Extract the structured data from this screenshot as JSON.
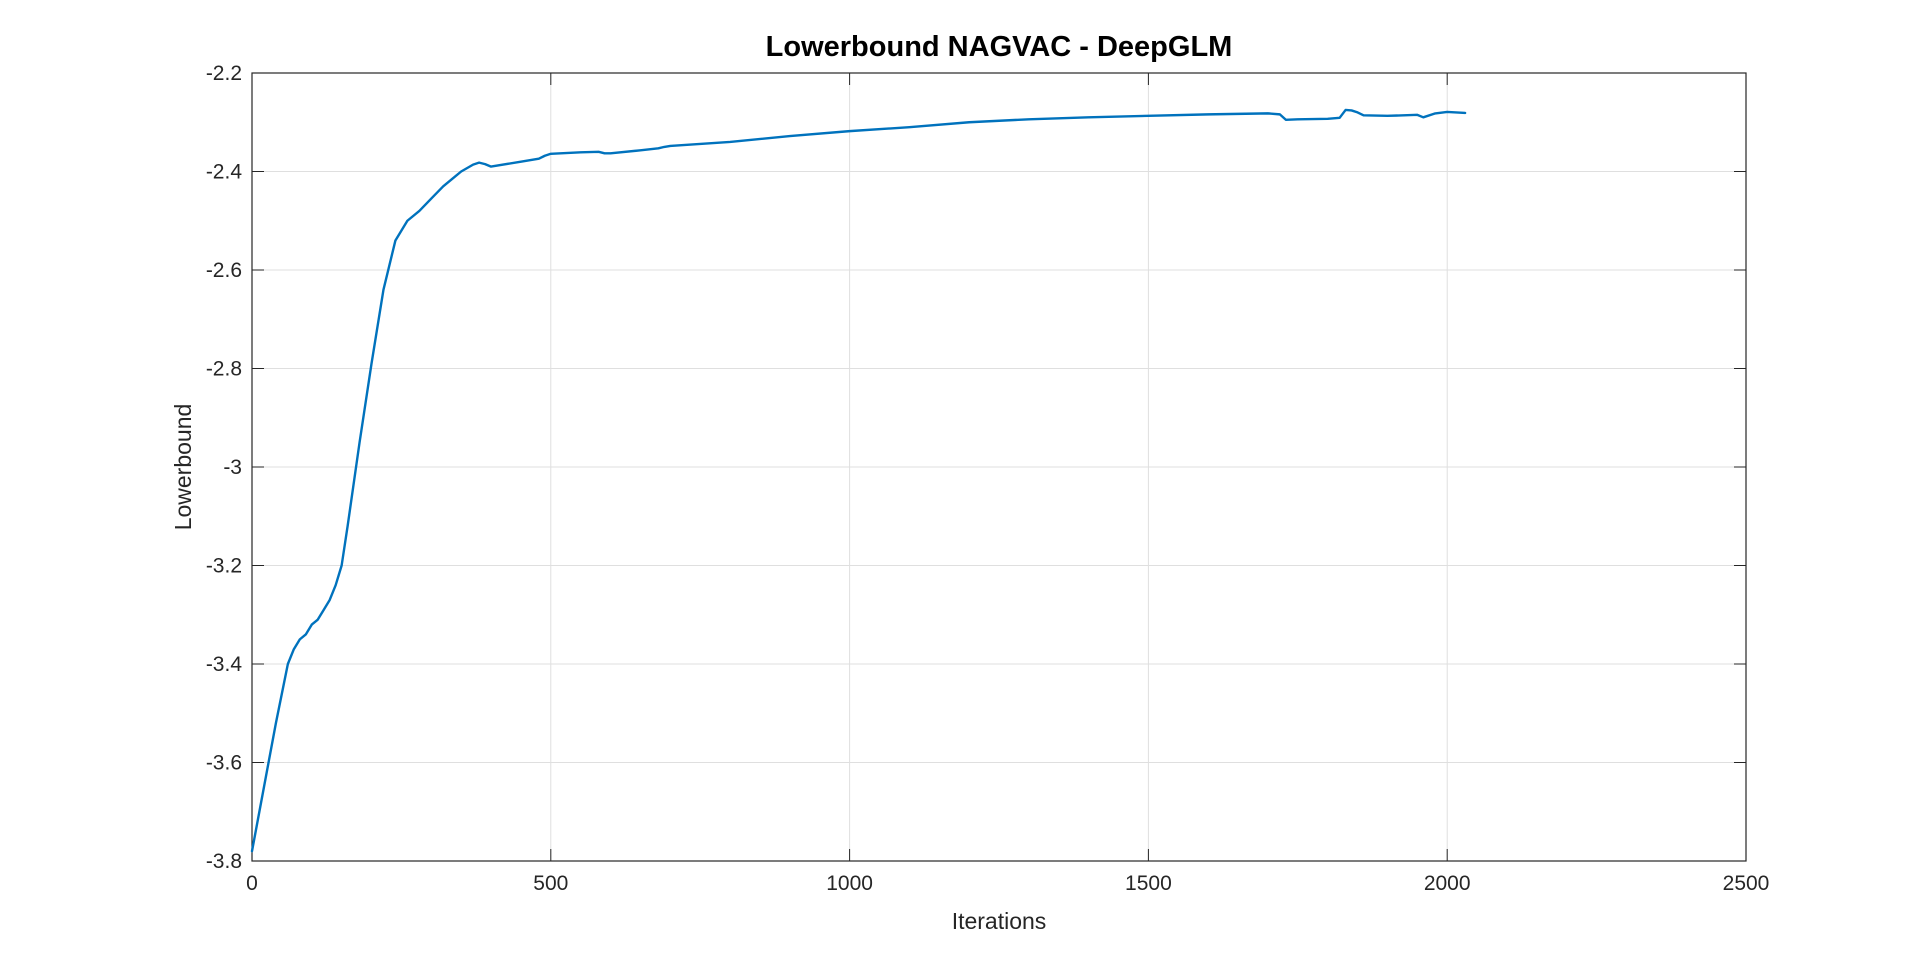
{
  "chart_data": {
    "type": "line",
    "title": "Lowerbound NAGVAC - DeepGLM",
    "xlabel": "Iterations",
    "ylabel": "Lowerbound",
    "xlim": [
      0,
      2500
    ],
    "ylim": [
      -3.8,
      -2.2
    ],
    "xticks": [
      0,
      500,
      1000,
      1500,
      2000,
      2500
    ],
    "yticks": [
      -3.8,
      -3.6,
      -3.4,
      -3.2,
      -3.0,
      -2.8,
      -2.6,
      -2.4,
      -2.2
    ],
    "xtick_labels": [
      "0",
      "500",
      "1000",
      "1500",
      "2000",
      "2500"
    ],
    "ytick_labels": [
      "-3.8",
      "-3.6",
      "-3.4",
      "-3.2",
      "-3",
      "-2.8",
      "-2.6",
      "-2.4",
      "-2.2"
    ],
    "grid": true,
    "line_color": "#0072BD",
    "series": [
      {
        "x": [
          0,
          20,
          40,
          60,
          70,
          80,
          90,
          100,
          110,
          120,
          130,
          140,
          150,
          160,
          180,
          200,
          220,
          240,
          250,
          260,
          280,
          300,
          320,
          340,
          350,
          370,
          380,
          390,
          400,
          450,
          480,
          490,
          500,
          550,
          580,
          590,
          600,
          650,
          680,
          690,
          700,
          800,
          900,
          1000,
          1100,
          1200,
          1300,
          1400,
          1500,
          1600,
          1650,
          1700,
          1720,
          1730,
          1750,
          1800,
          1820,
          1830,
          1840,
          1850,
          1860,
          1900,
          1950,
          1960,
          1980,
          2000,
          2030
        ],
        "y": [
          -3.78,
          -3.65,
          -3.52,
          -3.4,
          -3.37,
          -3.35,
          -3.34,
          -3.32,
          -3.31,
          -3.29,
          -3.27,
          -3.24,
          -3.2,
          -3.12,
          -2.95,
          -2.79,
          -2.64,
          -2.54,
          -2.52,
          -2.5,
          -2.48,
          -2.455,
          -2.43,
          -2.41,
          -2.4,
          -2.386,
          -2.382,
          -2.385,
          -2.39,
          -2.38,
          -2.374,
          -2.368,
          -2.364,
          -2.361,
          -2.36,
          -2.363,
          -2.363,
          -2.357,
          -2.353,
          -2.35,
          -2.348,
          -2.34,
          -2.328,
          -2.318,
          -2.31,
          -2.3,
          -2.294,
          -2.29,
          -2.287,
          -2.284,
          -2.283,
          -2.282,
          -2.284,
          -2.295,
          -2.294,
          -2.293,
          -2.291,
          -2.275,
          -2.276,
          -2.28,
          -2.286,
          -2.287,
          -2.285,
          -2.29,
          -2.282,
          -2.279,
          -2.281
        ]
      }
    ]
  }
}
